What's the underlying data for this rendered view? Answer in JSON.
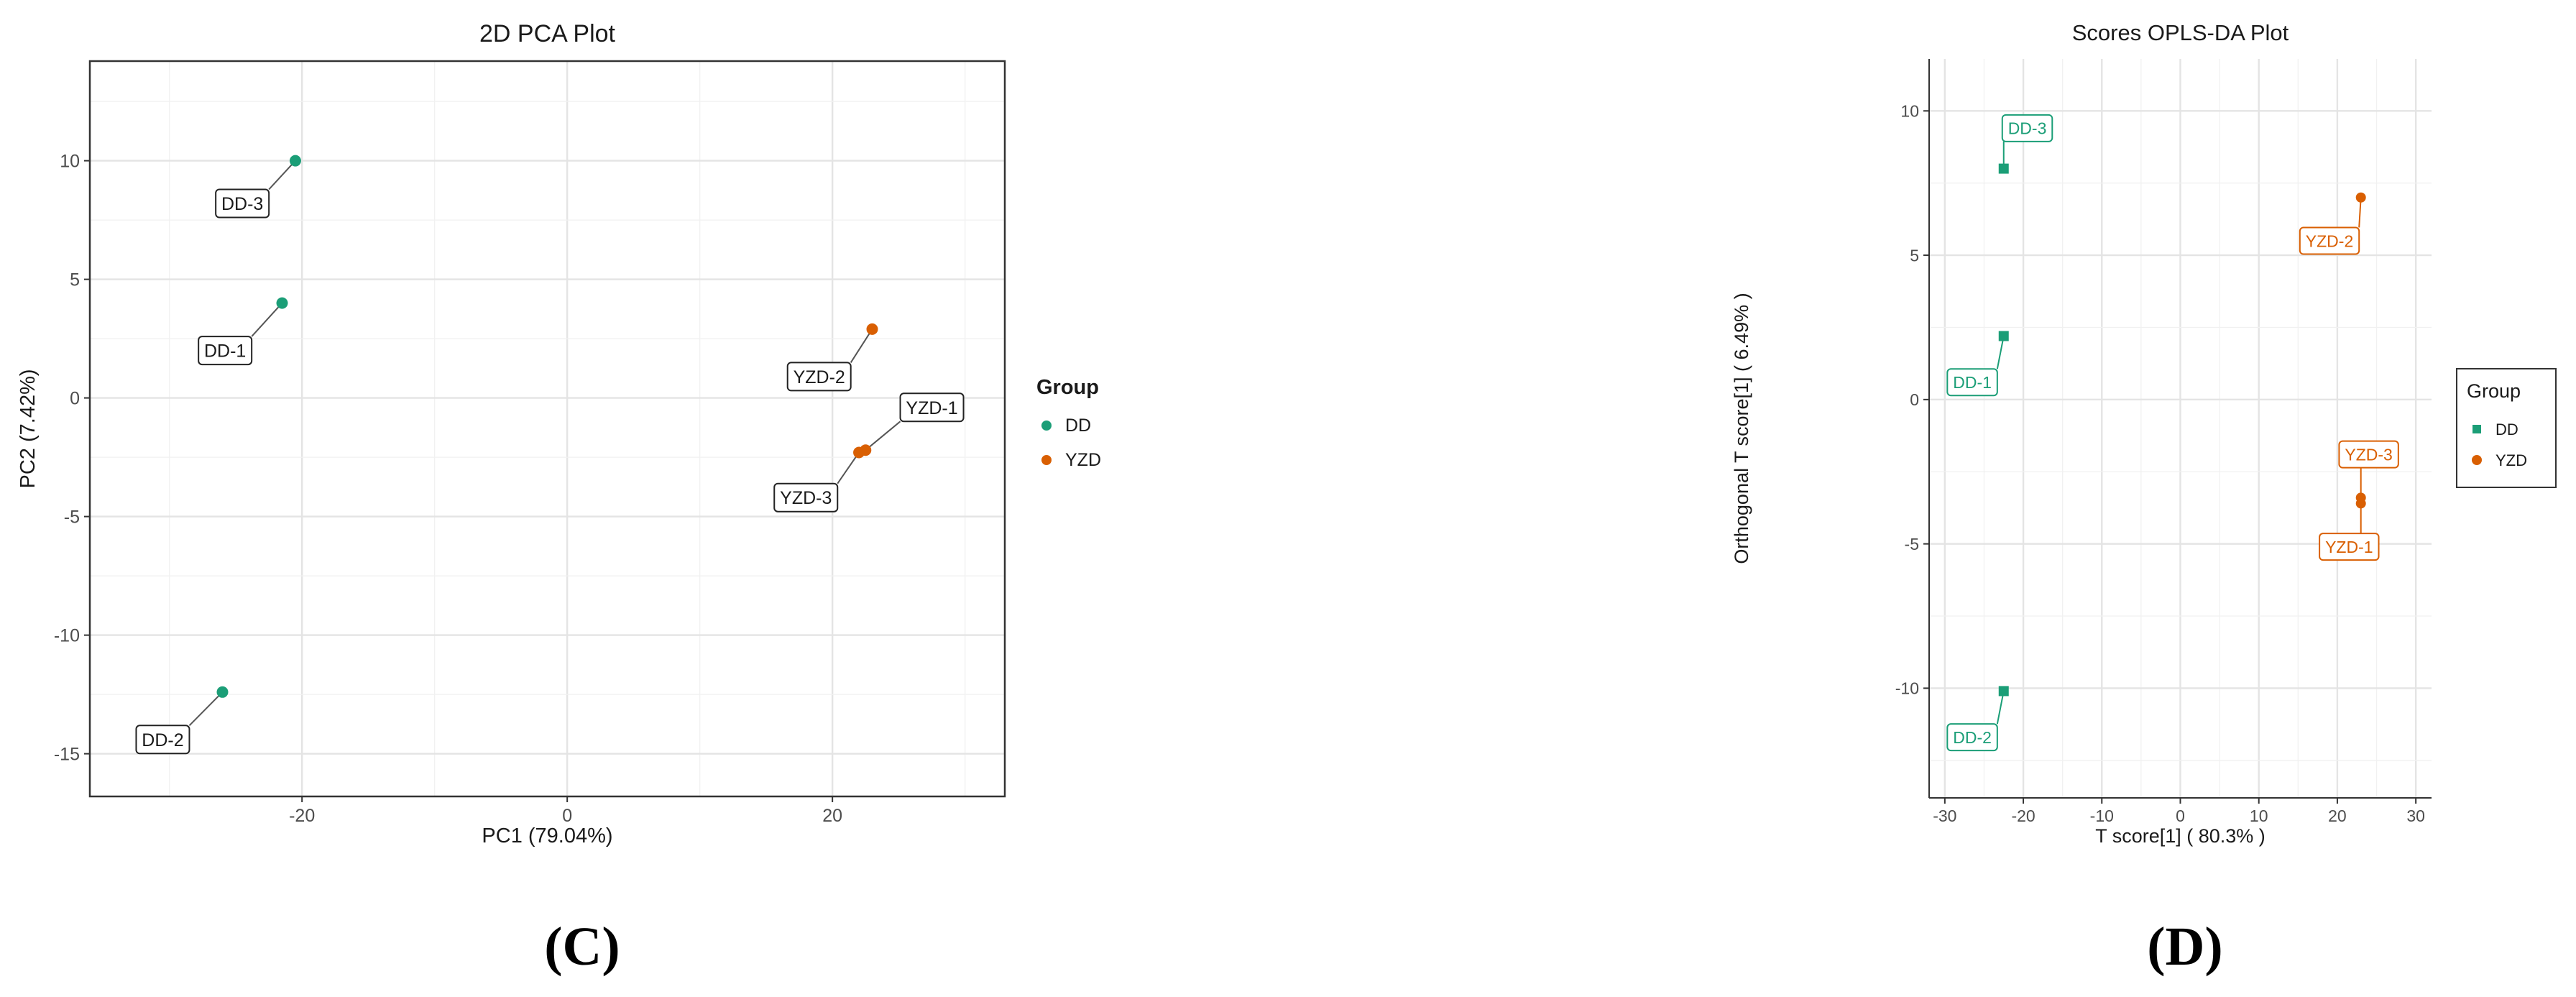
{
  "chart_data": [
    {
      "type": "scatter",
      "title": "2D PCA Plot",
      "xlabel": "PC1 (79.04%)",
      "ylabel": "PC2 (7.42%)",
      "xlim": [
        -36,
        33
      ],
      "ylim": [
        -16.8,
        14.2
      ],
      "xticks": [
        -20,
        0,
        20
      ],
      "yticks": [
        -15,
        -10,
        -5,
        0,
        5,
        10
      ],
      "grid": true,
      "panel_border": true,
      "legend_title": "Group",
      "legend_position": "right",
      "series": [
        {
          "name": "DD",
          "color": "#1b9e77",
          "marker": "circle",
          "points": [
            {
              "label": "DD-1",
              "x": -21.5,
              "y": 4.0,
              "label_x": -25.8,
              "label_y": 2.0
            },
            {
              "label": "DD-2",
              "x": -26.0,
              "y": -12.4,
              "label_x": -30.5,
              "label_y": -14.4
            },
            {
              "label": "DD-3",
              "x": -20.5,
              "y": 10.0,
              "label_x": -24.5,
              "label_y": 8.2
            }
          ]
        },
        {
          "name": "YZD",
          "color": "#d95f02",
          "marker": "circle",
          "points": [
            {
              "label": "YZD-1",
              "x": 22.5,
              "y": -2.2,
              "label_x": 27.5,
              "label_y": -0.4
            },
            {
              "label": "YZD-2",
              "x": 23.0,
              "y": 2.9,
              "label_x": 19.0,
              "label_y": 0.9
            },
            {
              "label": "YZD-3",
              "x": 22.0,
              "y": -2.3,
              "label_x": 18.0,
              "label_y": -4.2
            }
          ]
        }
      ]
    },
    {
      "type": "scatter",
      "title": "Scores OPLS-DA Plot",
      "xlabel": "T score[1] ( 80.3% )",
      "ylabel": "Orthogonal T score[1] ( 6.49% )",
      "xlim": [
        -32,
        32
      ],
      "ylim": [
        -13.8,
        11.8
      ],
      "xticks": [
        -30,
        -20,
        -10,
        0,
        10,
        20,
        30
      ],
      "yticks": [
        -10,
        -5,
        0,
        5,
        10
      ],
      "grid": true,
      "panel_border": false,
      "legend_title": "Group",
      "legend_position": "right",
      "series": [
        {
          "name": "DD",
          "color": "#1b9e77",
          "marker": "square",
          "points": [
            {
              "label": "DD-1",
              "x": -22.5,
              "y": 2.2,
              "label_x": -26.5,
              "label_y": 0.6
            },
            {
              "label": "DD-2",
              "x": -22.5,
              "y": -10.1,
              "label_x": -26.5,
              "label_y": -11.7
            },
            {
              "label": "DD-3",
              "x": -22.5,
              "y": 8.0,
              "label_x": -19.5,
              "label_y": 9.4
            }
          ]
        },
        {
          "name": "YZD",
          "color": "#d95f02",
          "marker": "circle",
          "points": [
            {
              "label": "YZD-1",
              "x": 23.0,
              "y": -3.6,
              "label_x": 21.5,
              "label_y": -5.1
            },
            {
              "label": "YZD-2",
              "x": 23.0,
              "y": 7.0,
              "label_x": 19.0,
              "label_y": 5.5
            },
            {
              "label": "YZD-3",
              "x": 23.0,
              "y": -3.4,
              "label_x": 24.0,
              "label_y": -1.9
            }
          ]
        }
      ]
    }
  ],
  "captions": [
    "(C)",
    "(D)"
  ]
}
